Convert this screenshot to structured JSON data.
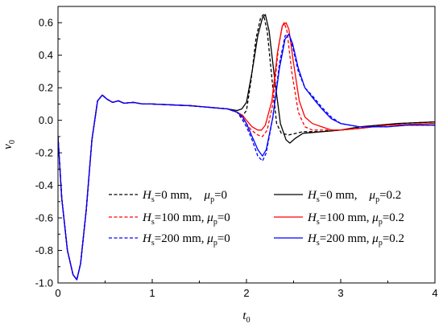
{
  "chart_data": {
    "type": "line",
    "title": "",
    "xlabel": {
      "main": "t",
      "sub": "0"
    },
    "ylabel": {
      "main": "v",
      "sub": "0"
    },
    "xlim": [
      0,
      4
    ],
    "ylim": [
      -1.0,
      0.7
    ],
    "xticks": [
      0,
      1,
      2,
      3,
      4
    ],
    "xtick_labels": [
      "0",
      "1",
      "2",
      "3",
      "4"
    ],
    "yticks": [
      -1.0,
      -0.8,
      -0.6,
      -0.4,
      -0.2,
      0.0,
      0.2,
      0.4,
      0.6
    ],
    "ytick_labels": [
      "-1.0",
      "-0.8",
      "-0.6",
      "-0.4",
      "-0.2",
      "0.0",
      "0.2",
      "0.4",
      "0.6"
    ],
    "grid": false,
    "legend_position": "lower-center",
    "series": [
      {
        "name": "Hs=0 mm, μp=0",
        "legend": {
          "h": "H",
          "hs": "s",
          "a": "=0 mm,    ",
          "mu": "μ",
          "mus": "p",
          "b": "=0"
        },
        "color": "#000000",
        "dash": "dashed",
        "points": [
          [
            0,
            -0.1
          ],
          [
            0.04,
            -0.48
          ],
          [
            0.1,
            -0.8
          ],
          [
            0.16,
            -0.95
          ],
          [
            0.2,
            -0.98
          ],
          [
            0.24,
            -0.88
          ],
          [
            0.3,
            -0.55
          ],
          [
            0.36,
            -0.12
          ],
          [
            0.42,
            0.12
          ],
          [
            0.47,
            0.155
          ],
          [
            0.52,
            0.13
          ],
          [
            0.58,
            0.11
          ],
          [
            0.64,
            0.12
          ],
          [
            0.7,
            0.105
          ],
          [
            0.8,
            0.11
          ],
          [
            0.9,
            0.1
          ],
          [
            1.0,
            0.1
          ],
          [
            1.2,
            0.095
          ],
          [
            1.4,
            0.09
          ],
          [
            1.6,
            0.08
          ],
          [
            1.8,
            0.07
          ],
          [
            1.9,
            0.05
          ],
          [
            1.96,
            0.03
          ],
          [
            2.0,
            0.06
          ],
          [
            2.05,
            0.25
          ],
          [
            2.1,
            0.5
          ],
          [
            2.15,
            0.63
          ],
          [
            2.18,
            0.65
          ],
          [
            2.22,
            0.55
          ],
          [
            2.28,
            0.2
          ],
          [
            2.32,
            -0.02
          ],
          [
            2.37,
            -0.08
          ],
          [
            2.45,
            -0.09
          ],
          [
            2.6,
            -0.07
          ],
          [
            2.8,
            -0.07
          ],
          [
            3.0,
            -0.06
          ],
          [
            3.3,
            -0.04
          ],
          [
            3.6,
            -0.02
          ],
          [
            4.0,
            -0.01
          ]
        ]
      },
      {
        "name": "Hs=0 mm, μp=0.2",
        "legend": {
          "h": "H",
          "hs": "s",
          "a": "=0 mm,    ",
          "mu": "μ",
          "mus": "p",
          "b": "=0.2"
        },
        "color": "#000000",
        "dash": "solid",
        "points": [
          [
            0,
            -0.1
          ],
          [
            0.04,
            -0.48
          ],
          [
            0.1,
            -0.8
          ],
          [
            0.16,
            -0.95
          ],
          [
            0.2,
            -0.98
          ],
          [
            0.24,
            -0.88
          ],
          [
            0.3,
            -0.55
          ],
          [
            0.36,
            -0.12
          ],
          [
            0.42,
            0.12
          ],
          [
            0.47,
            0.155
          ],
          [
            0.52,
            0.13
          ],
          [
            0.58,
            0.11
          ],
          [
            0.64,
            0.12
          ],
          [
            0.7,
            0.105
          ],
          [
            0.8,
            0.11
          ],
          [
            0.9,
            0.1
          ],
          [
            1.0,
            0.1
          ],
          [
            1.2,
            0.095
          ],
          [
            1.4,
            0.09
          ],
          [
            1.6,
            0.08
          ],
          [
            1.8,
            0.07
          ],
          [
            1.9,
            0.06
          ],
          [
            1.95,
            0.07
          ],
          [
            2.0,
            0.11
          ],
          [
            2.06,
            0.3
          ],
          [
            2.12,
            0.52
          ],
          [
            2.17,
            0.63
          ],
          [
            2.2,
            0.65
          ],
          [
            2.24,
            0.55
          ],
          [
            2.3,
            0.25
          ],
          [
            2.36,
            -0.02
          ],
          [
            2.42,
            -0.12
          ],
          [
            2.46,
            -0.14
          ],
          [
            2.52,
            -0.11
          ],
          [
            2.6,
            -0.08
          ],
          [
            2.8,
            -0.07
          ],
          [
            3.0,
            -0.06
          ],
          [
            3.2,
            -0.04
          ],
          [
            3.6,
            -0.02
          ],
          [
            4.0,
            -0.01
          ]
        ]
      },
      {
        "name": "Hs=100 mm, μp=0",
        "legend": {
          "h": "H",
          "hs": "s",
          "a": "=100 mm, ",
          "mu": "μ",
          "mus": "p",
          "b": "=0"
        },
        "color": "#ff0000",
        "dash": "dashed",
        "points": [
          [
            0,
            -0.1
          ],
          [
            0.04,
            -0.48
          ],
          [
            0.1,
            -0.8
          ],
          [
            0.16,
            -0.95
          ],
          [
            0.2,
            -0.98
          ],
          [
            0.24,
            -0.88
          ],
          [
            0.3,
            -0.55
          ],
          [
            0.36,
            -0.12
          ],
          [
            0.42,
            0.12
          ],
          [
            0.47,
            0.155
          ],
          [
            0.52,
            0.13
          ],
          [
            0.58,
            0.11
          ],
          [
            0.64,
            0.12
          ],
          [
            0.7,
            0.105
          ],
          [
            0.8,
            0.11
          ],
          [
            0.9,
            0.1
          ],
          [
            1.0,
            0.1
          ],
          [
            1.2,
            0.095
          ],
          [
            1.4,
            0.09
          ],
          [
            1.6,
            0.08
          ],
          [
            1.8,
            0.07
          ],
          [
            1.9,
            0.05
          ],
          [
            1.95,
            0.02
          ],
          [
            2.0,
            -0.02
          ],
          [
            2.05,
            -0.06
          ],
          [
            2.12,
            -0.09
          ],
          [
            2.17,
            -0.1
          ],
          [
            2.22,
            -0.06
          ],
          [
            2.28,
            0.1
          ],
          [
            2.34,
            0.45
          ],
          [
            2.38,
            0.58
          ],
          [
            2.4,
            0.6
          ],
          [
            2.43,
            0.55
          ],
          [
            2.48,
            0.3
          ],
          [
            2.55,
            0.05
          ],
          [
            2.62,
            -0.04
          ],
          [
            2.7,
            -0.06
          ],
          [
            2.8,
            -0.06
          ],
          [
            3.0,
            -0.06
          ],
          [
            3.2,
            -0.05
          ],
          [
            3.5,
            -0.03
          ],
          [
            4.0,
            -0.02
          ]
        ]
      },
      {
        "name": "Hs=100 mm, μp=0.2",
        "legend": {
          "h": "H",
          "hs": "s",
          "a": "=100 mm, ",
          "mu": "μ",
          "mus": "p",
          "b": "=0.2"
        },
        "color": "#ff0000",
        "dash": "solid",
        "points": [
          [
            0,
            -0.1
          ],
          [
            0.04,
            -0.48
          ],
          [
            0.1,
            -0.8
          ],
          [
            0.16,
            -0.95
          ],
          [
            0.2,
            -0.98
          ],
          [
            0.24,
            -0.88
          ],
          [
            0.3,
            -0.55
          ],
          [
            0.36,
            -0.12
          ],
          [
            0.42,
            0.12
          ],
          [
            0.47,
            0.155
          ],
          [
            0.52,
            0.13
          ],
          [
            0.58,
            0.11
          ],
          [
            0.64,
            0.12
          ],
          [
            0.7,
            0.105
          ],
          [
            0.8,
            0.11
          ],
          [
            0.9,
            0.1
          ],
          [
            1.0,
            0.1
          ],
          [
            1.2,
            0.095
          ],
          [
            1.4,
            0.09
          ],
          [
            1.6,
            0.08
          ],
          [
            1.8,
            0.07
          ],
          [
            1.9,
            0.05
          ],
          [
            1.96,
            0.03
          ],
          [
            2.0,
            0.0
          ],
          [
            2.06,
            -0.04
          ],
          [
            2.12,
            -0.06
          ],
          [
            2.16,
            -0.06
          ],
          [
            2.2,
            -0.03
          ],
          [
            2.27,
            0.12
          ],
          [
            2.33,
            0.42
          ],
          [
            2.38,
            0.58
          ],
          [
            2.42,
            0.6
          ],
          [
            2.45,
            0.56
          ],
          [
            2.5,
            0.35
          ],
          [
            2.56,
            0.12
          ],
          [
            2.62,
            0.02
          ],
          [
            2.7,
            -0.02
          ],
          [
            2.8,
            -0.04
          ],
          [
            2.9,
            -0.06
          ],
          [
            3.0,
            -0.06
          ],
          [
            3.2,
            -0.05
          ],
          [
            3.5,
            -0.03
          ],
          [
            4.0,
            -0.02
          ]
        ]
      },
      {
        "name": "Hs=200 mm, μp=0",
        "legend": {
          "h": "H",
          "hs": "s",
          "a": "=200 mm, ",
          "mu": "μ",
          "mus": "p",
          "b": "=0"
        },
        "color": "#0000ff",
        "dash": "dashed",
        "points": [
          [
            0,
            -0.1
          ],
          [
            0.04,
            -0.48
          ],
          [
            0.1,
            -0.8
          ],
          [
            0.16,
            -0.95
          ],
          [
            0.2,
            -0.98
          ],
          [
            0.24,
            -0.88
          ],
          [
            0.3,
            -0.55
          ],
          [
            0.36,
            -0.12
          ],
          [
            0.42,
            0.12
          ],
          [
            0.47,
            0.155
          ],
          [
            0.52,
            0.13
          ],
          [
            0.58,
            0.11
          ],
          [
            0.64,
            0.12
          ],
          [
            0.7,
            0.105
          ],
          [
            0.8,
            0.11
          ],
          [
            0.9,
            0.1
          ],
          [
            1.0,
            0.1
          ],
          [
            1.2,
            0.095
          ],
          [
            1.4,
            0.09
          ],
          [
            1.6,
            0.08
          ],
          [
            1.8,
            0.07
          ],
          [
            1.9,
            0.05
          ],
          [
            1.95,
            0.01
          ],
          [
            2.0,
            -0.04
          ],
          [
            2.06,
            -0.12
          ],
          [
            2.12,
            -0.22
          ],
          [
            2.17,
            -0.25
          ],
          [
            2.21,
            -0.2
          ],
          [
            2.28,
            0.02
          ],
          [
            2.35,
            0.35
          ],
          [
            2.41,
            0.52
          ],
          [
            2.45,
            0.53
          ],
          [
            2.49,
            0.45
          ],
          [
            2.55,
            0.3
          ],
          [
            2.62,
            0.2
          ],
          [
            2.7,
            0.15
          ],
          [
            2.8,
            0.08
          ],
          [
            2.9,
            0.02
          ],
          [
            3.0,
            -0.02
          ],
          [
            3.2,
            -0.04
          ],
          [
            3.5,
            -0.04
          ],
          [
            3.7,
            -0.03
          ],
          [
            4.0,
            -0.03
          ]
        ]
      },
      {
        "name": "Hs=200 mm, μp=0.2",
        "legend": {
          "h": "H",
          "hs": "s",
          "a": "=200 mm, ",
          "mu": "μ",
          "mus": "p",
          "b": "=0.2"
        },
        "color": "#0000ff",
        "dash": "solid",
        "points": [
          [
            0,
            -0.1
          ],
          [
            0.04,
            -0.48
          ],
          [
            0.1,
            -0.8
          ],
          [
            0.16,
            -0.95
          ],
          [
            0.2,
            -0.98
          ],
          [
            0.24,
            -0.88
          ],
          [
            0.3,
            -0.55
          ],
          [
            0.36,
            -0.12
          ],
          [
            0.42,
            0.12
          ],
          [
            0.47,
            0.155
          ],
          [
            0.52,
            0.13
          ],
          [
            0.58,
            0.11
          ],
          [
            0.64,
            0.12
          ],
          [
            0.7,
            0.105
          ],
          [
            0.8,
            0.11
          ],
          [
            0.9,
            0.1
          ],
          [
            1.0,
            0.1
          ],
          [
            1.2,
            0.095
          ],
          [
            1.4,
            0.09
          ],
          [
            1.6,
            0.08
          ],
          [
            1.8,
            0.07
          ],
          [
            1.9,
            0.05
          ],
          [
            1.96,
            0.02
          ],
          [
            2.0,
            -0.02
          ],
          [
            2.06,
            -0.1
          ],
          [
            2.12,
            -0.18
          ],
          [
            2.17,
            -0.22
          ],
          [
            2.21,
            -0.18
          ],
          [
            2.28,
            0.02
          ],
          [
            2.35,
            0.32
          ],
          [
            2.41,
            0.5
          ],
          [
            2.45,
            0.53
          ],
          [
            2.49,
            0.47
          ],
          [
            2.55,
            0.32
          ],
          [
            2.62,
            0.2
          ],
          [
            2.7,
            0.14
          ],
          [
            2.8,
            0.07
          ],
          [
            2.9,
            0.01
          ],
          [
            3.0,
            -0.02
          ],
          [
            3.2,
            -0.04
          ],
          [
            3.5,
            -0.04
          ],
          [
            3.7,
            -0.03
          ],
          [
            4.0,
            -0.03
          ]
        ]
      }
    ],
    "legend_layout": [
      [
        0,
        1
      ],
      [
        2,
        3
      ],
      [
        4,
        5
      ]
    ]
  }
}
